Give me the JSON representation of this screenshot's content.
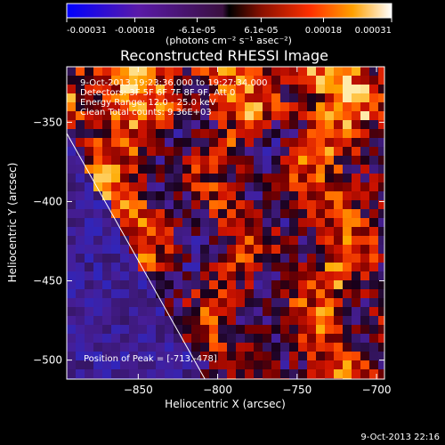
{
  "colorbar": {
    "ticks": [
      "-0.00031",
      "-0.00018",
      "-6.1e-05",
      "6.1e-05",
      "0.00018",
      "0.00031"
    ],
    "tick_values": [
      -0.00031,
      -0.00018,
      -6.1e-05,
      6.1e-05,
      0.00018,
      0.00031
    ],
    "range": [
      -0.00031,
      0.00031
    ],
    "units_label": "(photons cm⁻² s⁻¹ asec⁻²)"
  },
  "chart_data": {
    "type": "heatmap",
    "title": "Reconstructed RHESSI Image",
    "xlabel": "Heliocentric X (arcsec)",
    "ylabel": "Heliocentric Y (arcsec)",
    "xlim": [
      -895,
      -695
    ],
    "ylim": [
      -512,
      -315
    ],
    "x_ticks": [
      -850,
      -800,
      -750,
      -700
    ],
    "y_ticks": [
      -350,
      -400,
      -450,
      -500
    ],
    "limb_line": {
      "x": [
        -895,
        -808
      ],
      "y": [
        -357,
        -512
      ]
    },
    "peak": {
      "x": -713,
      "y": -478
    },
    "annotations": [
      "9-Oct-2013 19:23:36.000 to 19:27:34.000",
      "Detectors: 3F 5F 6F 7F 8F 9F, Att 0",
      "Energy Range: 12.0 - 25.0 keV",
      "Clean     Total counts: 9.36E+03"
    ],
    "peak_label": "Position of Peak = [-713,-478]"
  },
  "footer": {
    "timestamp": "9-Oct-2013 22:16"
  }
}
